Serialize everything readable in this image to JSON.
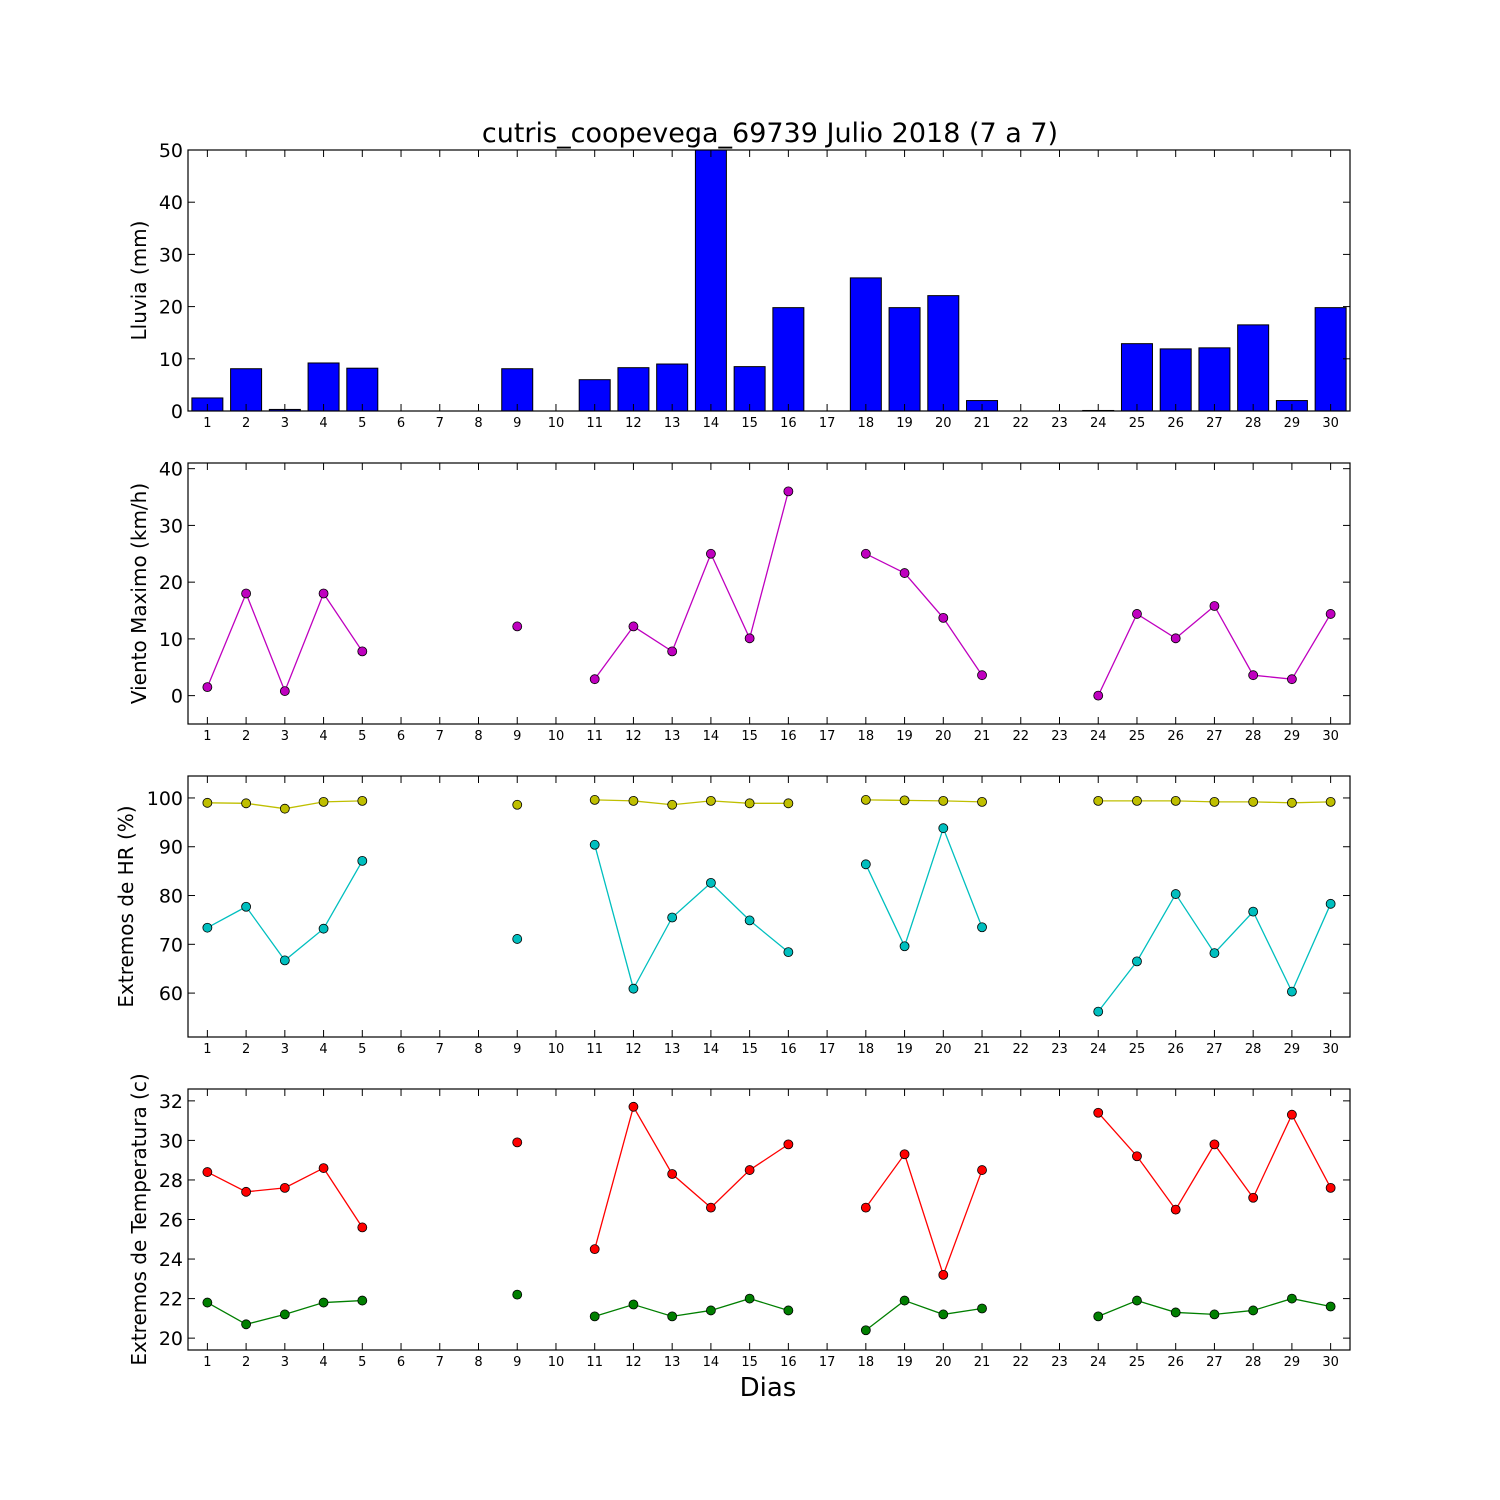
{
  "chart_data": {
    "type": "multi-panel",
    "title": "cutris_coopevega_69739 Julio 2018  (7 a 7)",
    "xlabel": "Dias",
    "days": [
      1,
      2,
      3,
      4,
      5,
      6,
      7,
      8,
      9,
      10,
      11,
      12,
      13,
      14,
      15,
      16,
      17,
      18,
      19,
      20,
      21,
      22,
      23,
      24,
      25,
      26,
      27,
      28,
      29,
      30
    ],
    "panels": [
      {
        "type": "bar",
        "ylabel": "Lluvia (mm)",
        "ylim": [
          0,
          50
        ],
        "yticks": [
          0,
          10,
          20,
          30,
          40,
          50
        ],
        "series": [
          {
            "color": "#0000ff",
            "values": [
              2.5,
              8.1,
              0.3,
              9.2,
              8.2,
              0,
              0,
              0,
              8.1,
              0,
              6.0,
              8.3,
              9.0,
              50.5,
              8.5,
              19.8,
              0,
              25.5,
              19.8,
              22.1,
              2.0,
              0,
              0,
              0.1,
              12.9,
              11.9,
              12.1,
              16.5,
              2.0,
              19.8
            ]
          }
        ]
      },
      {
        "type": "line",
        "ylabel": "Viento Maximo (km/h)",
        "ylim": [
          -5,
          41
        ],
        "yticks": [
          0,
          10,
          20,
          30,
          40
        ],
        "series": [
          {
            "color": "#bf00bf",
            "values": [
              1.5,
              18.0,
              0.8,
              18.0,
              7.8,
              null,
              null,
              null,
              12.2,
              null,
              2.9,
              12.2,
              7.8,
              25.0,
              10.1,
              36.0,
              null,
              25.0,
              21.6,
              13.7,
              3.6,
              null,
              null,
              0.0,
              14.4,
              10.1,
              15.8,
              3.6,
              2.9,
              14.4
            ]
          }
        ]
      },
      {
        "type": "line",
        "ylabel": "Extremos de HR (%)",
        "ylim": [
          51,
          104.5
        ],
        "yticks": [
          60,
          70,
          80,
          90,
          100
        ],
        "series": [
          {
            "color": "#bfbf00",
            "values": [
              99.0,
              98.9,
              97.8,
              99.2,
              99.4,
              null,
              null,
              null,
              98.6,
              null,
              99.6,
              99.4,
              98.6,
              99.4,
              98.9,
              98.9,
              null,
              99.6,
              99.5,
              99.4,
              99.2,
              null,
              null,
              99.4,
              99.4,
              99.4,
              99.2,
              99.2,
              99.0,
              99.2
            ]
          },
          {
            "color": "#00bfbf",
            "values": [
              73.4,
              77.7,
              66.7,
              73.2,
              87.1,
              null,
              null,
              null,
              71.1,
              null,
              90.4,
              60.9,
              75.5,
              82.6,
              74.9,
              68.4,
              null,
              86.4,
              69.6,
              93.8,
              73.5,
              null,
              null,
              56.2,
              66.5,
              80.3,
              68.2,
              76.7,
              60.3,
              78.3
            ]
          }
        ]
      },
      {
        "type": "line",
        "ylabel": "Extremos de Temperatura (c)",
        "ylim": [
          19.4,
          32.6
        ],
        "yticks": [
          20,
          22,
          24,
          26,
          28,
          30,
          32
        ],
        "series": [
          {
            "color": "#ff0000",
            "values": [
              28.4,
              27.4,
              27.6,
              28.6,
              25.6,
              null,
              null,
              null,
              29.9,
              null,
              24.5,
              31.7,
              28.3,
              26.6,
              28.5,
              29.8,
              null,
              26.6,
              29.3,
              23.2,
              28.5,
              null,
              null,
              31.4,
              29.2,
              26.5,
              29.8,
              27.1,
              31.3,
              27.6
            ]
          },
          {
            "color": "#007f00",
            "values": [
              21.8,
              20.7,
              21.2,
              21.8,
              21.9,
              null,
              null,
              null,
              22.2,
              null,
              21.1,
              21.7,
              21.1,
              21.4,
              22.0,
              21.4,
              null,
              20.4,
              21.9,
              21.2,
              21.5,
              null,
              null,
              21.1,
              21.9,
              21.3,
              21.2,
              21.4,
              22.0,
              21.6
            ]
          }
        ]
      }
    ]
  }
}
